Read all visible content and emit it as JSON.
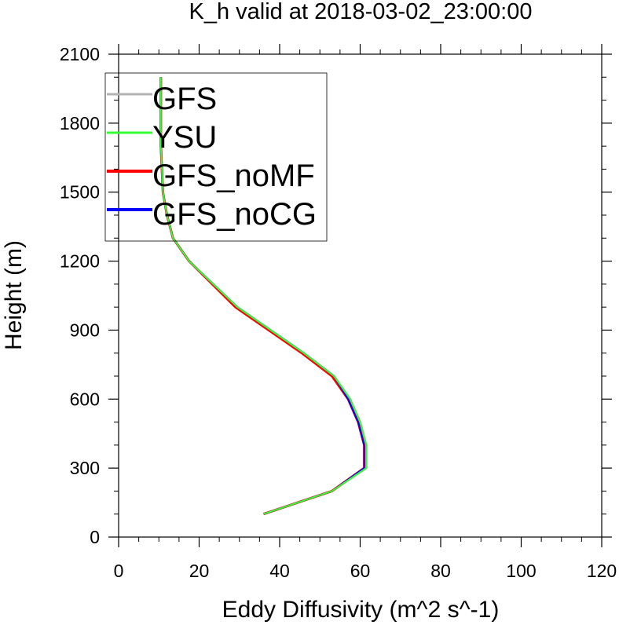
{
  "chart_data": {
    "type": "line",
    "title": "K_h valid at 2018-03-02_23:00:00",
    "xlabel": "Eddy Diffusivity (m^2 s^-1)",
    "ylabel": "Height (m)",
    "xlim": [
      0,
      120
    ],
    "ylim": [
      0,
      2100
    ],
    "xticks": [
      "0",
      "20",
      "40",
      "60",
      "80",
      "100",
      "120"
    ],
    "yticks": [
      "0",
      "300",
      "600",
      "900",
      "1200",
      "1500",
      "1800",
      "2100"
    ],
    "grid": false,
    "legend_position": "top-left",
    "series": [
      {
        "name": "GFS",
        "color": "#b3b3b3",
        "x": [
          36,
          53,
          61.5,
          61.5,
          60,
          57.5,
          53.5,
          46,
          29.5,
          17.5,
          13.5,
          12,
          11,
          10.5,
          10.5,
          10.5
        ],
        "y": [
          100,
          200,
          300,
          400,
          500,
          600,
          700,
          800,
          1000,
          1200,
          1300,
          1400,
          1500,
          1700,
          1900,
          2000
        ]
      },
      {
        "name": "YSU",
        "color": "#33ff33",
        "x": [
          36,
          53,
          61.5,
          61.5,
          60,
          57.5,
          53.5,
          46,
          29.5,
          17.5,
          13.5,
          12,
          11,
          10.5,
          10.5,
          10.5
        ],
        "y": [
          100,
          200,
          300,
          400,
          500,
          600,
          700,
          800,
          1000,
          1200,
          1300,
          1400,
          1500,
          1700,
          1900,
          2000
        ]
      },
      {
        "name": "GFS_noMF",
        "color": "#ff0000",
        "x": [
          36,
          53,
          61,
          61,
          59.5,
          57,
          53,
          45.5,
          29,
          17.5,
          13.5,
          12,
          11,
          10.5,
          10.5,
          10.5
        ],
        "y": [
          100,
          200,
          300,
          400,
          500,
          600,
          700,
          800,
          1000,
          1200,
          1300,
          1400,
          1500,
          1700,
          1900,
          2000
        ]
      },
      {
        "name": "GFS_noCG",
        "color": "#0000ff",
        "x": [
          36,
          53,
          61,
          61,
          59.5,
          57,
          53.5,
          46,
          29.5,
          17.5,
          13.5,
          12,
          11,
          10.5,
          10.5,
          10.5
        ],
        "y": [
          100,
          200,
          300,
          400,
          500,
          600,
          700,
          800,
          1000,
          1200,
          1300,
          1400,
          1500,
          1700,
          1900,
          2000
        ]
      }
    ]
  }
}
